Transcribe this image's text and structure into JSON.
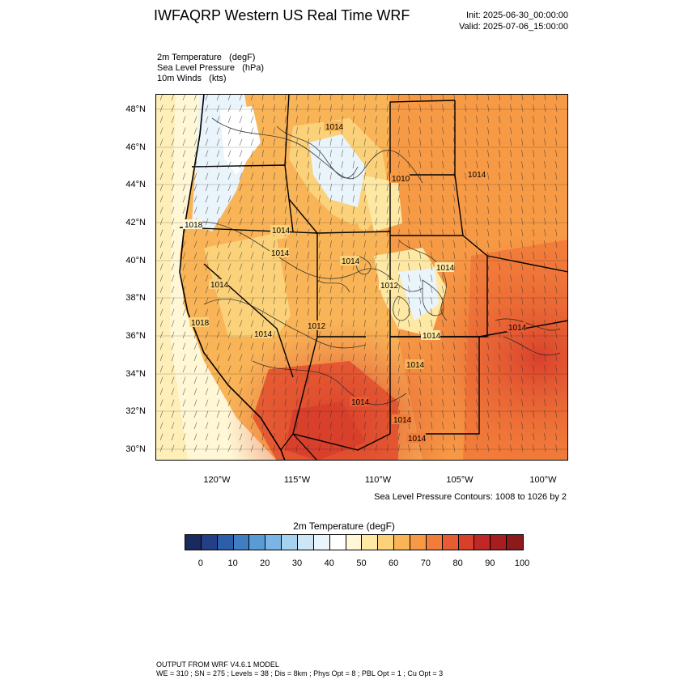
{
  "header": {
    "title": "IWFAQRP Western US Real Time WRF",
    "init": "Init: 2025-06-30_00:00:00",
    "valid": "Valid: 2025-07-06_15:00:00"
  },
  "fields": [
    "2m Temperature   (degF)",
    "Sea Level Pressure   (hPa)",
    "10m Winds   (kts)"
  ],
  "map": {
    "lat_labels": [
      "48°N",
      "46°N",
      "44°N",
      "42°N",
      "40°N",
      "38°N",
      "36°N",
      "34°N",
      "32°N",
      "30°N"
    ],
    "lon_labels": [
      "120°W",
      "115°W",
      "110°W",
      "105°W",
      "100°W"
    ],
    "pressure_labels": [
      "1014",
      "1010",
      "1014",
      "1018",
      "1014",
      "1014",
      "1014",
      "1014",
      "1012",
      "1014",
      "1018",
      "1014",
      "1012",
      "1014",
      "1014",
      "1014",
      "1014",
      "1014",
      "1014"
    ],
    "contour_note": "Sea Level Pressure Contours: 1008 to 1026 by 2"
  },
  "colorbar": {
    "title": "2m Temperature  (degF)",
    "colors": [
      "#1b2a5e",
      "#233f85",
      "#2d5ea8",
      "#3f7dc4",
      "#5a9bd6",
      "#7bb5e3",
      "#a6d2f0",
      "#cde6f6",
      "#eaf4fb",
      "#ffffff",
      "#fff7d6",
      "#fde8a4",
      "#fbd27a",
      "#f9b457",
      "#f79a45",
      "#f27d3a",
      "#e75c33",
      "#d9402c",
      "#c22727",
      "#a71d20",
      "#8b1a1a"
    ],
    "ticks": [
      "0",
      "10",
      "20",
      "30",
      "40",
      "50",
      "60",
      "70",
      "80",
      "90",
      "100"
    ]
  },
  "footer": {
    "line1": "OUTPUT FROM WRF V4.6.1 MODEL",
    "line2": "WE = 310 ; SN = 275 ; Levels = 38 ; Dis = 8km ; Phys Opt = 8 ; PBL Opt = 1 ; Cu Opt = 3"
  }
}
